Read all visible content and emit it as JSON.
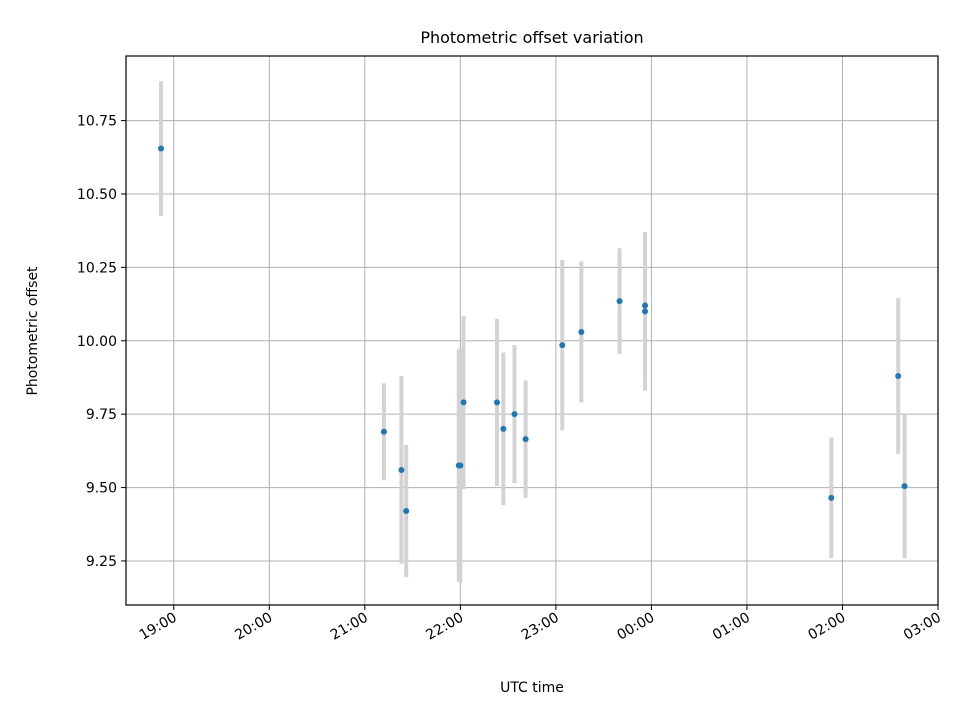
{
  "chart_data": {
    "type": "scatter",
    "title": "Photometric offset variation",
    "xlabel": "UTC time",
    "ylabel": "Photometric offset",
    "grid": true,
    "legend": "none",
    "colors": {
      "points": "#1f77b4",
      "errorbars": "#d3d3d3",
      "grid": "#b0b0b0"
    },
    "xlim": [
      "18:30",
      "03:00"
    ],
    "ylim": [
      9.1,
      10.97
    ],
    "xticks": [
      "19:00",
      "20:00",
      "21:00",
      "22:00",
      "23:00",
      "00:00",
      "01:00",
      "02:00",
      "03:00"
    ],
    "yticks": [
      "9.25",
      "9.50",
      "9.75",
      "10.00",
      "10.25",
      "10.50",
      "10.75"
    ],
    "points": [
      {
        "x": "18:52",
        "y": 10.655,
        "err": 0.23
      },
      {
        "x": "21:12",
        "y": 9.69,
        "err": 0.165
      },
      {
        "x": "21:23",
        "y": 9.56,
        "err": 0.32
      },
      {
        "x": "21:26",
        "y": 9.42,
        "err": 0.225
      },
      {
        "x": "21:59",
        "y": 9.575,
        "err": 0.395
      },
      {
        "x": "22:00",
        "y": 9.575,
        "err": 0.4
      },
      {
        "x": "22:02",
        "y": 9.79,
        "err": 0.295
      },
      {
        "x": "22:23",
        "y": 9.79,
        "err": 0.285
      },
      {
        "x": "22:27",
        "y": 9.7,
        "err": 0.26
      },
      {
        "x": "22:34",
        "y": 9.75,
        "err": 0.235
      },
      {
        "x": "22:41",
        "y": 9.665,
        "err": 0.2
      },
      {
        "x": "23:04",
        "y": 9.985,
        "err": 0.29
      },
      {
        "x": "23:16",
        "y": 10.03,
        "err": 0.24
      },
      {
        "x": "23:40",
        "y": 10.135,
        "err": 0.18
      },
      {
        "x": "23:56",
        "y": 10.12,
        "err": 0.25
      },
      {
        "x": "23:56",
        "y": 10.1,
        "err": 0.27
      },
      {
        "x": "01:53",
        "y": 9.465,
        "err": 0.205
      },
      {
        "x": "02:35",
        "y": 9.88,
        "err": 0.265
      },
      {
        "x": "02:39",
        "y": 9.505,
        "err": 0.245
      }
    ]
  }
}
